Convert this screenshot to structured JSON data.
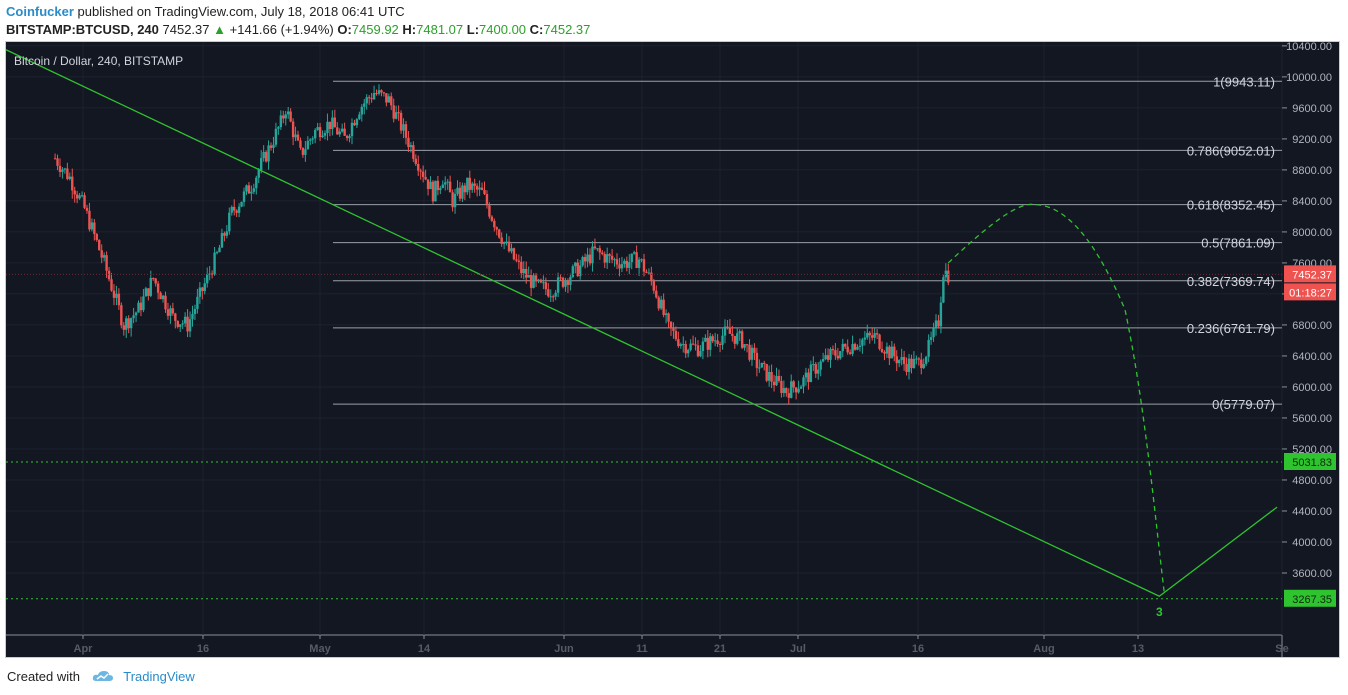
{
  "header": {
    "author": "Coinfucker",
    "published_text": "published on TradingView.com, July 18, 2018 06:41 UTC",
    "symbol": "BITSTAMP:BTCUSD, 240",
    "last": "7452.37",
    "change_arrow": "▲",
    "change": "+141.66 (+1.94%)",
    "o_label": "O:",
    "o": "7459.92",
    "h_label": "H:",
    "h": "7481.07",
    "l_label": "L:",
    "l": "7400.00",
    "c_label": "C:",
    "c": "7452.37"
  },
  "footer": {
    "created_with": "Created with",
    "brand": "TradingView",
    "icon": "tradingview-cloud-icon"
  },
  "colors": {
    "background": "#131722",
    "up": "#26a69a",
    "down": "#ef5350",
    "trend": "#2fc42f",
    "fib": "#9aa0a8",
    "axis_text": "#b2b5be",
    "price_tag": "#ef5350",
    "level_tag": "#2fc42f"
  },
  "chart_data": {
    "type": "candlestick",
    "title": "Bitcoin / Dollar, 240, BITSTAMP",
    "x_tick_labels": [
      "Apr",
      "16",
      "May",
      "14",
      "Jun",
      "11",
      "21",
      "Jul",
      "16",
      "Aug",
      "13",
      "Se"
    ],
    "y_tick_labels": [
      "10400.00",
      "10000.00",
      "9600.00",
      "9200.00",
      "8800.00",
      "8400.00",
      "8000.00",
      "7600.00",
      "7200.00",
      "6800.00",
      "6400.00",
      "6000.00",
      "5600.00",
      "5200.00",
      "4800.00",
      "4400.00",
      "4000.00",
      "3600.00"
    ],
    "ylim": [
      2800,
      10450
    ],
    "price_path": [
      [
        0,
        8950
      ],
      [
        3,
        8700
      ],
      [
        6,
        8300
      ],
      [
        10,
        7600
      ],
      [
        14,
        6800
      ],
      [
        17,
        7000
      ],
      [
        20,
        7400
      ],
      [
        24,
        6900
      ],
      [
        27,
        6800
      ],
      [
        29,
        7100
      ],
      [
        31,
        7400
      ],
      [
        33,
        7700
      ],
      [
        36,
        8250
      ],
      [
        40,
        8600
      ],
      [
        43,
        9000
      ],
      [
        46,
        9400
      ],
      [
        47,
        9600
      ],
      [
        50,
        9000
      ],
      [
        53,
        9300
      ],
      [
        56,
        9400
      ],
      [
        59,
        9200
      ],
      [
        62,
        9600
      ],
      [
        65,
        9800
      ],
      [
        68,
        9700
      ],
      [
        71,
        9300
      ],
      [
        74,
        8900
      ],
      [
        77,
        8500
      ],
      [
        79,
        8700
      ],
      [
        81,
        8400
      ],
      [
        84,
        8600
      ],
      [
        87,
        8500
      ],
      [
        89,
        8200
      ],
      [
        92,
        7800
      ],
      [
        95,
        7500
      ],
      [
        98,
        7300
      ],
      [
        101,
        7250
      ],
      [
        104,
        7400
      ],
      [
        107,
        7550
      ],
      [
        110,
        7750
      ],
      [
        113,
        7650
      ],
      [
        116,
        7600
      ],
      [
        119,
        7650
      ],
      [
        122,
        7300
      ],
      [
        125,
        6750
      ],
      [
        128,
        6550
      ],
      [
        131,
        6500
      ],
      [
        134,
        6600
      ],
      [
        137,
        6700
      ],
      [
        140,
        6600
      ],
      [
        143,
        6300
      ],
      [
        146,
        6100
      ],
      [
        149,
        5950
      ],
      [
        152,
        6050
      ],
      [
        155,
        6250
      ],
      [
        158,
        6400
      ],
      [
        161,
        6500
      ],
      [
        164,
        6600
      ],
      [
        167,
        6650
      ],
      [
        170,
        6450
      ],
      [
        173,
        6300
      ],
      [
        176,
        6300
      ],
      [
        178,
        6500
      ],
      [
        180,
        6850
      ],
      [
        181,
        7500
      ],
      [
        182,
        7452
      ]
    ],
    "fib_levels": [
      {
        "label": "1(9943.11)",
        "value": 9943.11
      },
      {
        "label": "0.786(9052.01)",
        "value": 9052.01
      },
      {
        "label": "0.618(8352.45)",
        "value": 8352.45
      },
      {
        "label": "0.5(7861.09)",
        "value": 7861.09
      },
      {
        "label": "0.382(7369.74)",
        "value": 7369.74
      },
      {
        "label": "0.236(6761.79)",
        "value": 6761.79
      },
      {
        "label": "0(5779.07)",
        "value": 5779.07
      }
    ],
    "horizontal_levels": [
      {
        "label": "5031.83",
        "value": 5031.83
      },
      {
        "label": "3267.35",
        "value": 3267.35
      }
    ],
    "price_tag": {
      "value": "7452.37",
      "countdown": "01:18:27"
    },
    "trendline": [
      [
        -10,
        10350
      ],
      [
        225,
        3300
      ],
      [
        249,
        4450
      ]
    ],
    "projection": [
      [
        182,
        7600
      ],
      [
        200,
        8350
      ],
      [
        210,
        8200
      ],
      [
        218,
        7000
      ],
      [
        226,
        3350
      ]
    ],
    "wave_label": "3",
    "day_range": [
      -10,
      250
    ]
  }
}
